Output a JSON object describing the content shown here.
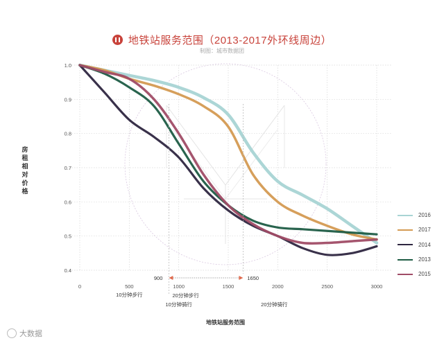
{
  "title": "地铁站服务范围（2013-2017外环线周边）",
  "subtitle": "制图：城市数据团",
  "logo_icon": "subway-logo-icon",
  "watermark": {
    "icon": "logo-icon",
    "text": "大数据"
  },
  "chart_data": {
    "type": "line",
    "title": "地铁站服务范围（2013-2017外环线周边）",
    "xlabel": "地铁站服务范围",
    "ylabel": "房租相对价格",
    "xlim": [
      0,
      3000
    ],
    "ylim": [
      0.4,
      1.0
    ],
    "x_ticks": [
      "0",
      "500",
      "1000",
      "1500",
      "2000",
      "2500",
      "3000"
    ],
    "y_ticks": [
      "0.4",
      "0.5",
      "0.6",
      "0.7",
      "0.8",
      "0.9",
      "1.0"
    ],
    "grid": true,
    "legend_position": "right",
    "annotations": [
      {
        "x": 500,
        "text": "10分钟步行"
      },
      {
        "x": 1000,
        "text": "20分钟步行"
      },
      {
        "x": 1000,
        "text": "10分钟骑行"
      },
      {
        "x": 2000,
        "text": "20分钟骑行"
      }
    ],
    "range_marker": {
      "from": 900,
      "to": 1650,
      "from_label": "900",
      "to_label": "1650",
      "color": "#e06a4e"
    },
    "series": [
      {
        "name": "2016",
        "color": "#a8d4d4",
        "x": [
          0,
          250,
          500,
          750,
          1000,
          1250,
          1500,
          1750,
          2000,
          2250,
          2500,
          2750,
          3000
        ],
        "y": [
          1.0,
          0.985,
          0.97,
          0.955,
          0.935,
          0.905,
          0.855,
          0.745,
          0.66,
          0.62,
          0.58,
          0.53,
          0.48
        ]
      },
      {
        "name": "2017",
        "color": "#d49a52",
        "x": [
          0,
          250,
          500,
          750,
          1000,
          1250,
          1500,
          1750,
          2000,
          2250,
          2500,
          2750,
          3000
        ],
        "y": [
          1.0,
          0.985,
          0.96,
          0.94,
          0.915,
          0.88,
          0.82,
          0.68,
          0.6,
          0.56,
          0.53,
          0.505,
          0.49
        ]
      },
      {
        "name": "2014",
        "color": "#2e2640",
        "x": [
          0,
          250,
          500,
          750,
          1000,
          1250,
          1500,
          1750,
          2000,
          2250,
          2500,
          2750,
          3000
        ],
        "y": [
          1.0,
          0.92,
          0.84,
          0.79,
          0.73,
          0.64,
          0.575,
          0.53,
          0.5,
          0.465,
          0.445,
          0.45,
          0.47
        ]
      },
      {
        "name": "2013",
        "color": "#1e5c44",
        "x": [
          0,
          250,
          500,
          750,
          1000,
          1250,
          1500,
          1750,
          2000,
          2250,
          2500,
          2750,
          3000
        ],
        "y": [
          1.0,
          0.975,
          0.935,
          0.88,
          0.77,
          0.66,
          0.59,
          0.545,
          0.525,
          0.52,
          0.515,
          0.51,
          0.505
        ]
      },
      {
        "name": "2015",
        "color": "#a04c66",
        "x": [
          0,
          250,
          500,
          750,
          1000,
          1250,
          1500,
          1750,
          2000,
          2250,
          2500,
          2750,
          3000
        ],
        "y": [
          1.0,
          0.98,
          0.96,
          0.9,
          0.8,
          0.68,
          0.59,
          0.535,
          0.5,
          0.48,
          0.48,
          0.485,
          0.49
        ]
      }
    ]
  }
}
